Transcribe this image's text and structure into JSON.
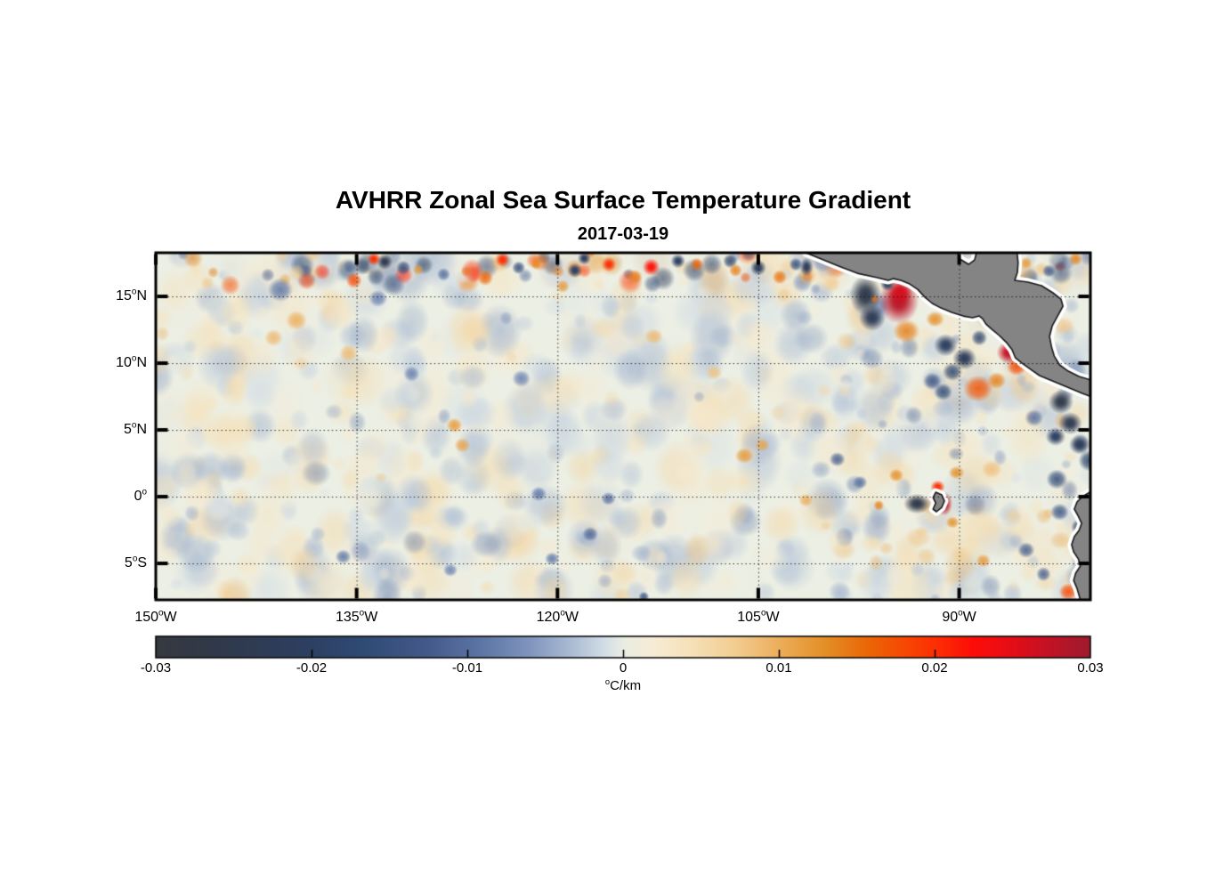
{
  "figure": {
    "background": "#ffffff"
  },
  "chart_data": {
    "type": "heatmap",
    "title": "AVHRR Zonal Sea Surface Temperature Gradient",
    "date": "2017-03-19",
    "x_axis": {
      "range_deg_west": [
        150,
        80.2
      ],
      "ticks": [
        {
          "label": "150°W",
          "lon_w": 150
        },
        {
          "label": "135°W",
          "lon_w": 135
        },
        {
          "label": "120°W",
          "lon_w": 120
        },
        {
          "label": "105°W",
          "lon_w": 105
        },
        {
          "label": "90°W",
          "lon_w": 90
        }
      ],
      "grid_lons_w": [
        135,
        120,
        105,
        90
      ]
    },
    "y_axis": {
      "range_deg": [
        18.27,
        -7.73
      ],
      "ticks": [
        {
          "label": "15°N",
          "lat": 15
        },
        {
          "label": "10°N",
          "lat": 10
        },
        {
          "label": "5°N",
          "lat": 5
        },
        {
          "label": "0°",
          "lat": 0
        },
        {
          "label": "5°S",
          "lat": -5
        }
      ],
      "grid_lats": [
        15,
        10,
        5,
        0,
        -5
      ]
    },
    "grid_style": "dotted",
    "sea_base_color": "#ecefe4",
    "land_color": "#848484",
    "land_outline_color": "#1a1a1a",
    "coast_halo_color": "#ffffff",
    "colorbar": {
      "min": -0.03,
      "max": 0.03,
      "ticks": [
        {
          "label": "-0.03",
          "value": -0.03
        },
        {
          "label": "-0.02",
          "value": -0.02
        },
        {
          "label": "-0.01",
          "value": -0.01
        },
        {
          "label": "0",
          "value": 0
        },
        {
          "label": "0.01",
          "value": 0.01
        },
        {
          "label": "0.02",
          "value": 0.02
        },
        {
          "label": "0.03",
          "value": 0.03
        }
      ],
      "unit": "°C/km",
      "stops": [
        [
          0.0,
          "#36393f"
        ],
        [
          0.08,
          "#2f3a4d"
        ],
        [
          0.16,
          "#2d3f60"
        ],
        [
          0.22,
          "#2f4a74"
        ],
        [
          0.29,
          "#44598a"
        ],
        [
          0.35,
          "#5d76a6"
        ],
        [
          0.4,
          "#8095bd"
        ],
        [
          0.45,
          "#b0c0d6"
        ],
        [
          0.48,
          "#d2dde6"
        ],
        [
          0.5,
          "#e9ede2"
        ],
        [
          0.53,
          "#f6ecd7"
        ],
        [
          0.57,
          "#f6e2ba"
        ],
        [
          0.62,
          "#f2cd92"
        ],
        [
          0.67,
          "#ecac57"
        ],
        [
          0.72,
          "#e38c23"
        ],
        [
          0.76,
          "#ea6807"
        ],
        [
          0.8,
          "#f64903"
        ],
        [
          0.84,
          "#fd2a04"
        ],
        [
          0.875,
          "#fc0d08"
        ],
        [
          0.91,
          "#e90d15"
        ],
        [
          0.955,
          "#c31224"
        ],
        [
          1.0,
          "#9e1b30"
        ]
      ]
    },
    "land_polygons": {
      "central_america": [
        [
          101.45,
          18.27
        ],
        [
          100.3,
          17.8
        ],
        [
          99.0,
          17.27
        ],
        [
          97.6,
          16.73
        ],
        [
          96.1,
          16.4
        ],
        [
          95.3,
          16.2
        ],
        [
          94.9,
          16.33
        ],
        [
          94.35,
          16.2
        ],
        [
          93.7,
          15.93
        ],
        [
          93.1,
          15.53
        ],
        [
          92.55,
          14.93
        ],
        [
          92.0,
          14.47
        ],
        [
          91.35,
          14.13
        ],
        [
          90.55,
          13.8
        ],
        [
          89.7,
          13.53
        ],
        [
          89.0,
          13.4
        ],
        [
          88.5,
          13.53
        ],
        [
          88.25,
          13.33
        ],
        [
          88.0,
          12.93
        ],
        [
          87.55,
          12.53
        ],
        [
          87.0,
          12.07
        ],
        [
          86.45,
          11.53
        ],
        [
          86.05,
          11.0
        ],
        [
          85.8,
          10.4
        ],
        [
          85.3,
          10.0
        ],
        [
          84.65,
          9.53
        ],
        [
          84.0,
          9.07
        ],
        [
          83.2,
          8.73
        ],
        [
          82.4,
          8.4
        ],
        [
          81.6,
          8.07
        ],
        [
          80.8,
          7.73
        ],
        [
          79.9,
          7.4
        ],
        [
          79.9,
          8.67
        ],
        [
          81.05,
          9.0
        ],
        [
          81.85,
          9.4
        ],
        [
          82.5,
          9.87
        ],
        [
          82.9,
          10.53
        ],
        [
          83.1,
          11.2
        ],
        [
          83.25,
          12.0
        ],
        [
          83.05,
          12.8
        ],
        [
          82.65,
          13.53
        ],
        [
          82.25,
          14.27
        ],
        [
          82.4,
          14.8
        ],
        [
          83.0,
          15.27
        ],
        [
          83.85,
          15.8
        ],
        [
          84.85,
          16.07
        ],
        [
          85.85,
          16.2
        ],
        [
          85.65,
          16.8
        ],
        [
          85.6,
          17.53
        ],
        [
          85.7,
          18.5
        ],
        [
          88.65,
          18.5
        ],
        [
          88.85,
          17.73
        ],
        [
          89.3,
          17.4
        ],
        [
          89.95,
          17.8
        ],
        [
          90.15,
          18.5
        ],
        [
          101.45,
          18.5
        ]
      ],
      "south_america": [
        [
          79.9,
          0.53
        ],
        [
          80.8,
          0.0
        ],
        [
          81.2,
          -0.4
        ],
        [
          81.4,
          -0.93
        ],
        [
          81.1,
          -1.47
        ],
        [
          80.85,
          -2.0
        ],
        [
          81.05,
          -2.53
        ],
        [
          81.4,
          -3.0
        ],
        [
          81.6,
          -3.6
        ],
        [
          81.45,
          -4.13
        ],
        [
          81.1,
          -4.67
        ],
        [
          80.95,
          -5.2
        ],
        [
          81.3,
          -5.73
        ],
        [
          81.45,
          -6.27
        ],
        [
          81.2,
          -6.87
        ],
        [
          80.9,
          -7.9
        ],
        [
          79.8,
          -7.9
        ]
      ],
      "galapagos": [
        [
          91.75,
          0.33
        ],
        [
          91.3,
          0.13
        ],
        [
          91.1,
          -0.33
        ],
        [
          91.3,
          -0.8
        ],
        [
          91.7,
          -1.13
        ],
        [
          91.95,
          -0.93
        ],
        [
          91.75,
          -0.47
        ],
        [
          91.95,
          -0.07
        ]
      ]
    },
    "features": [
      {
        "lon": 94.5,
        "lat": 14.67,
        "rx": 1.5,
        "ry": 1.75,
        "v": 0.028
      },
      {
        "lon": 94.4,
        "lat": 15.3,
        "rx": 0.9,
        "ry": 0.9,
        "v": 0.026
      },
      {
        "lon": 97.0,
        "lat": 15.1,
        "rx": 1.2,
        "ry": 1.5,
        "v": -0.026
      },
      {
        "lon": 96.5,
        "lat": 13.4,
        "rx": 1.0,
        "ry": 1.0,
        "v": -0.022
      },
      {
        "lon": 95.35,
        "lat": 15.9,
        "rx": 0.55,
        "ry": 0.5,
        "v": -0.02
      },
      {
        "lon": 96.3,
        "lat": 14.8,
        "rx": 0.3,
        "ry": 0.3,
        "v": 0.015
      },
      {
        "lon": 93.95,
        "lat": 12.4,
        "rx": 1.0,
        "ry": 0.9,
        "v": 0.014
      },
      {
        "lon": 91.8,
        "lat": 13.3,
        "rx": 0.7,
        "ry": 0.6,
        "v": 0.013
      },
      {
        "lon": 86.3,
        "lat": 10.8,
        "rx": 0.9,
        "ry": 0.85,
        "v": 0.027
      },
      {
        "lon": 85.7,
        "lat": 9.75,
        "rx": 0.75,
        "ry": 0.7,
        "v": 0.018
      },
      {
        "lon": 87.2,
        "lat": 8.7,
        "rx": 0.7,
        "ry": 0.65,
        "v": 0.014
      },
      {
        "lon": 88.6,
        "lat": 8.1,
        "rx": 1.1,
        "ry": 1.0,
        "v": 0.017
      },
      {
        "lon": 91.0,
        "lat": 11.35,
        "rx": 0.9,
        "ry": 0.85,
        "v": -0.02
      },
      {
        "lon": 89.6,
        "lat": 10.35,
        "rx": 0.9,
        "ry": 0.85,
        "v": -0.022
      },
      {
        "lon": 90.5,
        "lat": 9.35,
        "rx": 0.75,
        "ry": 0.7,
        "v": -0.018
      },
      {
        "lon": 92.0,
        "lat": 8.65,
        "rx": 0.7,
        "ry": 0.65,
        "v": -0.014
      },
      {
        "lon": 91.2,
        "lat": 7.85,
        "rx": 0.7,
        "ry": 0.65,
        "v": -0.016
      },
      {
        "lon": 88.5,
        "lat": 11.9,
        "rx": 0.6,
        "ry": 0.6,
        "v": -0.018
      },
      {
        "lon": 87.3,
        "lat": 13.2,
        "rx": 0.5,
        "ry": 0.5,
        "v": -0.014
      },
      {
        "lon": 85.0,
        "lat": 17.5,
        "rx": 0.45,
        "ry": 0.45,
        "v": 0.012
      },
      {
        "lon": 81.3,
        "lat": 17.8,
        "rx": 0.5,
        "ry": 0.5,
        "v": 0.014
      },
      {
        "lon": 83.3,
        "lat": 16.9,
        "rx": 0.5,
        "ry": 0.5,
        "v": -0.014
      },
      {
        "lon": 101.4,
        "lat": 17.2,
        "rx": 0.5,
        "ry": 0.7,
        "v": -0.022
      },
      {
        "lon": 82.4,
        "lat": 7.1,
        "rx": 0.95,
        "ry": 0.9,
        "v": -0.026
      },
      {
        "lon": 81.7,
        "lat": 5.5,
        "rx": 0.9,
        "ry": 0.85,
        "v": -0.024
      },
      {
        "lon": 82.8,
        "lat": 4.5,
        "rx": 0.75,
        "ry": 0.7,
        "v": -0.02
      },
      {
        "lon": 81.0,
        "lat": 3.9,
        "rx": 0.8,
        "ry": 0.75,
        "v": -0.022
      },
      {
        "lon": 80.3,
        "lat": 2.7,
        "rx": 0.8,
        "ry": 0.8,
        "v": -0.018
      },
      {
        "lon": 84.4,
        "lat": 5.9,
        "rx": 0.7,
        "ry": 0.65,
        "v": -0.01
      },
      {
        "lon": 82.7,
        "lat": 1.3,
        "rx": 0.8,
        "ry": 0.75,
        "v": -0.016
      },
      {
        "lon": 82.5,
        "lat": -1.15,
        "rx": 0.7,
        "ry": 0.65,
        "v": -0.014
      },
      {
        "lon": 81.05,
        "lat": -2.27,
        "rx": 0.6,
        "ry": 0.6,
        "v": -0.016
      },
      {
        "lon": 80.65,
        "lat": -3.8,
        "rx": 0.55,
        "ry": 0.55,
        "v": -0.012
      },
      {
        "lon": 85.0,
        "lat": -4.0,
        "rx": 0.65,
        "ry": 0.6,
        "v": -0.012
      },
      {
        "lon": 88.2,
        "lat": -4.8,
        "rx": 0.55,
        "ry": 0.5,
        "v": 0.012
      },
      {
        "lon": 81.85,
        "lat": -7.13,
        "rx": 0.7,
        "ry": 0.65,
        "v": 0.018
      },
      {
        "lon": 80.65,
        "lat": -6.27,
        "rx": 0.55,
        "ry": 0.55,
        "v": 0.014
      },
      {
        "lon": 83.7,
        "lat": -5.8,
        "rx": 0.55,
        "ry": 0.55,
        "v": -0.012
      },
      {
        "lon": 93.15,
        "lat": -0.53,
        "rx": 1.0,
        "ry": 0.75,
        "v": -0.026
      },
      {
        "lon": 91.1,
        "lat": -0.53,
        "rx": 0.6,
        "ry": 0.9,
        "v": 0.028
      },
      {
        "lon": 91.6,
        "lat": 0.73,
        "rx": 0.55,
        "ry": 0.5,
        "v": 0.02
      },
      {
        "lon": 90.5,
        "lat": -1.93,
        "rx": 0.5,
        "ry": 0.45,
        "v": 0.013
      },
      {
        "lon": 90.2,
        "lat": 1.8,
        "rx": 0.6,
        "ry": 0.5,
        "v": 0.013
      },
      {
        "lon": 96.0,
        "lat": -0.65,
        "rx": 0.4,
        "ry": 0.4,
        "v": 0.014
      },
      {
        "lon": 94.7,
        "lat": 1.6,
        "rx": 0.55,
        "ry": 0.5,
        "v": 0.013
      },
      {
        "lon": 135.2,
        "lat": 16.2,
        "rx": 0.6,
        "ry": 0.6,
        "v": 0.018
      },
      {
        "lon": 133.7,
        "lat": 17.8,
        "rx": 0.5,
        "ry": 0.5,
        "v": 0.02
      },
      {
        "lon": 132.9,
        "lat": 17.6,
        "rx": 0.6,
        "ry": 0.6,
        "v": -0.024
      },
      {
        "lon": 131.5,
        "lat": 17.15,
        "rx": 0.55,
        "ry": 0.55,
        "v": -0.016
      },
      {
        "lon": 130.4,
        "lat": 17.0,
        "rx": 0.4,
        "ry": 0.4,
        "v": 0.012
      },
      {
        "lon": 128.5,
        "lat": 16.65,
        "rx": 0.5,
        "ry": 0.5,
        "v": -0.01
      },
      {
        "lon": 125.4,
        "lat": 16.4,
        "rx": 0.6,
        "ry": 0.6,
        "v": 0.016
      },
      {
        "lon": 124.1,
        "lat": 17.75,
        "rx": 0.55,
        "ry": 0.55,
        "v": 0.02
      },
      {
        "lon": 122.9,
        "lat": 17.15,
        "rx": 0.5,
        "ry": 0.5,
        "v": -0.016
      },
      {
        "lon": 121.6,
        "lat": 17.4,
        "rx": 0.4,
        "ry": 0.4,
        "v": 0.013
      },
      {
        "lon": 119.6,
        "lat": 15.75,
        "rx": 0.5,
        "ry": 0.5,
        "v": 0.012
      },
      {
        "lon": 118.7,
        "lat": 16.95,
        "rx": 0.55,
        "ry": 0.55,
        "v": -0.02
      },
      {
        "lon": 118.0,
        "lat": 17.85,
        "rx": 0.5,
        "ry": 0.5,
        "v": -0.022
      },
      {
        "lon": 116.15,
        "lat": 17.4,
        "rx": 0.55,
        "ry": 0.55,
        "v": 0.02
      },
      {
        "lon": 114.2,
        "lat": 16.45,
        "rx": 0.55,
        "ry": 0.55,
        "v": 0.014
      },
      {
        "lon": 113.0,
        "lat": 17.2,
        "rx": 0.65,
        "ry": 0.65,
        "v": 0.022
      },
      {
        "lon": 111.0,
        "lat": 17.65,
        "rx": 0.55,
        "ry": 0.55,
        "v": -0.02
      },
      {
        "lon": 109.6,
        "lat": 17.4,
        "rx": 0.5,
        "ry": 0.5,
        "v": 0.016
      },
      {
        "lon": 107.1,
        "lat": 17.65,
        "rx": 0.55,
        "ry": 0.55,
        "v": -0.018
      },
      {
        "lon": 106.7,
        "lat": 16.95,
        "rx": 0.5,
        "ry": 0.5,
        "v": 0.014
      },
      {
        "lon": 105.0,
        "lat": 17.15,
        "rx": 0.6,
        "ry": 0.6,
        "v": -0.022
      },
      {
        "lon": 103.4,
        "lat": 16.45,
        "rx": 0.55,
        "ry": 0.55,
        "v": 0.015
      },
      {
        "lon": 102.2,
        "lat": 17.4,
        "rx": 0.5,
        "ry": 0.5,
        "v": -0.016
      },
      {
        "lon": 140.7,
        "lat": 15.5,
        "rx": 0.95,
        "ry": 0.9,
        "v": -0.009
      },
      {
        "lon": 139.5,
        "lat": 13.2,
        "rx": 0.8,
        "ry": 0.75,
        "v": 0.01
      },
      {
        "lon": 141.2,
        "lat": 11.9,
        "rx": 0.7,
        "ry": 0.65,
        "v": 0.009
      },
      {
        "lon": 135.6,
        "lat": 10.75,
        "rx": 0.7,
        "ry": 0.65,
        "v": 0.009
      },
      {
        "lon": 133.4,
        "lat": 14.85,
        "rx": 0.7,
        "ry": 0.65,
        "v": -0.008
      },
      {
        "lon": 130.9,
        "lat": 9.2,
        "rx": 0.6,
        "ry": 0.6,
        "v": -0.008
      },
      {
        "lon": 127.7,
        "lat": 5.35,
        "rx": 0.6,
        "ry": 0.55,
        "v": 0.012
      },
      {
        "lon": 127.1,
        "lat": 3.85,
        "rx": 0.6,
        "ry": 0.55,
        "v": 0.011
      },
      {
        "lon": 122.7,
        "lat": 8.85,
        "rx": 0.7,
        "ry": 0.65,
        "v": -0.008
      },
      {
        "lon": 121.4,
        "lat": 0.2,
        "rx": 0.6,
        "ry": 0.55,
        "v": -0.009
      },
      {
        "lon": 116.2,
        "lat": -0.15,
        "rx": 0.55,
        "ry": 0.5,
        "v": -0.01
      },
      {
        "lon": 117.55,
        "lat": -2.8,
        "rx": 0.6,
        "ry": 0.55,
        "v": -0.011
      },
      {
        "lon": 120.4,
        "lat": -4.65,
        "rx": 0.55,
        "ry": 0.5,
        "v": -0.009
      },
      {
        "lon": 106.05,
        "lat": 3.07,
        "rx": 0.7,
        "ry": 0.6,
        "v": 0.012
      },
      {
        "lon": 104.7,
        "lat": 3.87,
        "rx": 0.55,
        "ry": 0.5,
        "v": 0.011
      },
      {
        "lon": 99.1,
        "lat": 2.8,
        "rx": 0.6,
        "ry": 0.55,
        "v": -0.012
      },
      {
        "lon": 97.4,
        "lat": 1.07,
        "rx": 0.55,
        "ry": 0.5,
        "v": -0.01
      },
      {
        "lon": 101.45,
        "lat": -0.27,
        "rx": 0.55,
        "ry": 0.5,
        "v": 0.01
      },
      {
        "lon": 112.8,
        "lat": 12.0,
        "rx": 0.7,
        "ry": 0.6,
        "v": 0.009
      },
      {
        "lon": 108.3,
        "lat": 9.3,
        "rx": 0.6,
        "ry": 0.55,
        "v": 0.008
      },
      {
        "lon": 136.0,
        "lat": -4.5,
        "rx": 0.6,
        "ry": 0.55,
        "v": -0.009
      },
      {
        "lon": 128.0,
        "lat": -5.5,
        "rx": 0.55,
        "ry": 0.5,
        "v": -0.008
      },
      {
        "lon": 113.55,
        "lat": -7.5,
        "rx": 0.4,
        "ry": 0.4,
        "v": -0.015
      }
    ],
    "texture": {
      "seed": 20170319,
      "soft_count": 780,
      "soft_amp": 0.0115,
      "soft_warm_bias": 0.45,
      "soft_r_min": 0.5,
      "soft_r_max": 1.9,
      "medium_count": 130,
      "medium_amp": 0.02,
      "north_band": {
        "lat_min": 15.8,
        "lat_max": 18.3,
        "count": 95,
        "amp": 0.044,
        "r_min": 0.4,
        "r_max": 0.95
      },
      "east_band": {
        "lon_min": 80.3,
        "lon_max": 101,
        "count": 90,
        "amp": 0.022,
        "r_min": 0.4,
        "r_max": 1.0
      }
    }
  }
}
